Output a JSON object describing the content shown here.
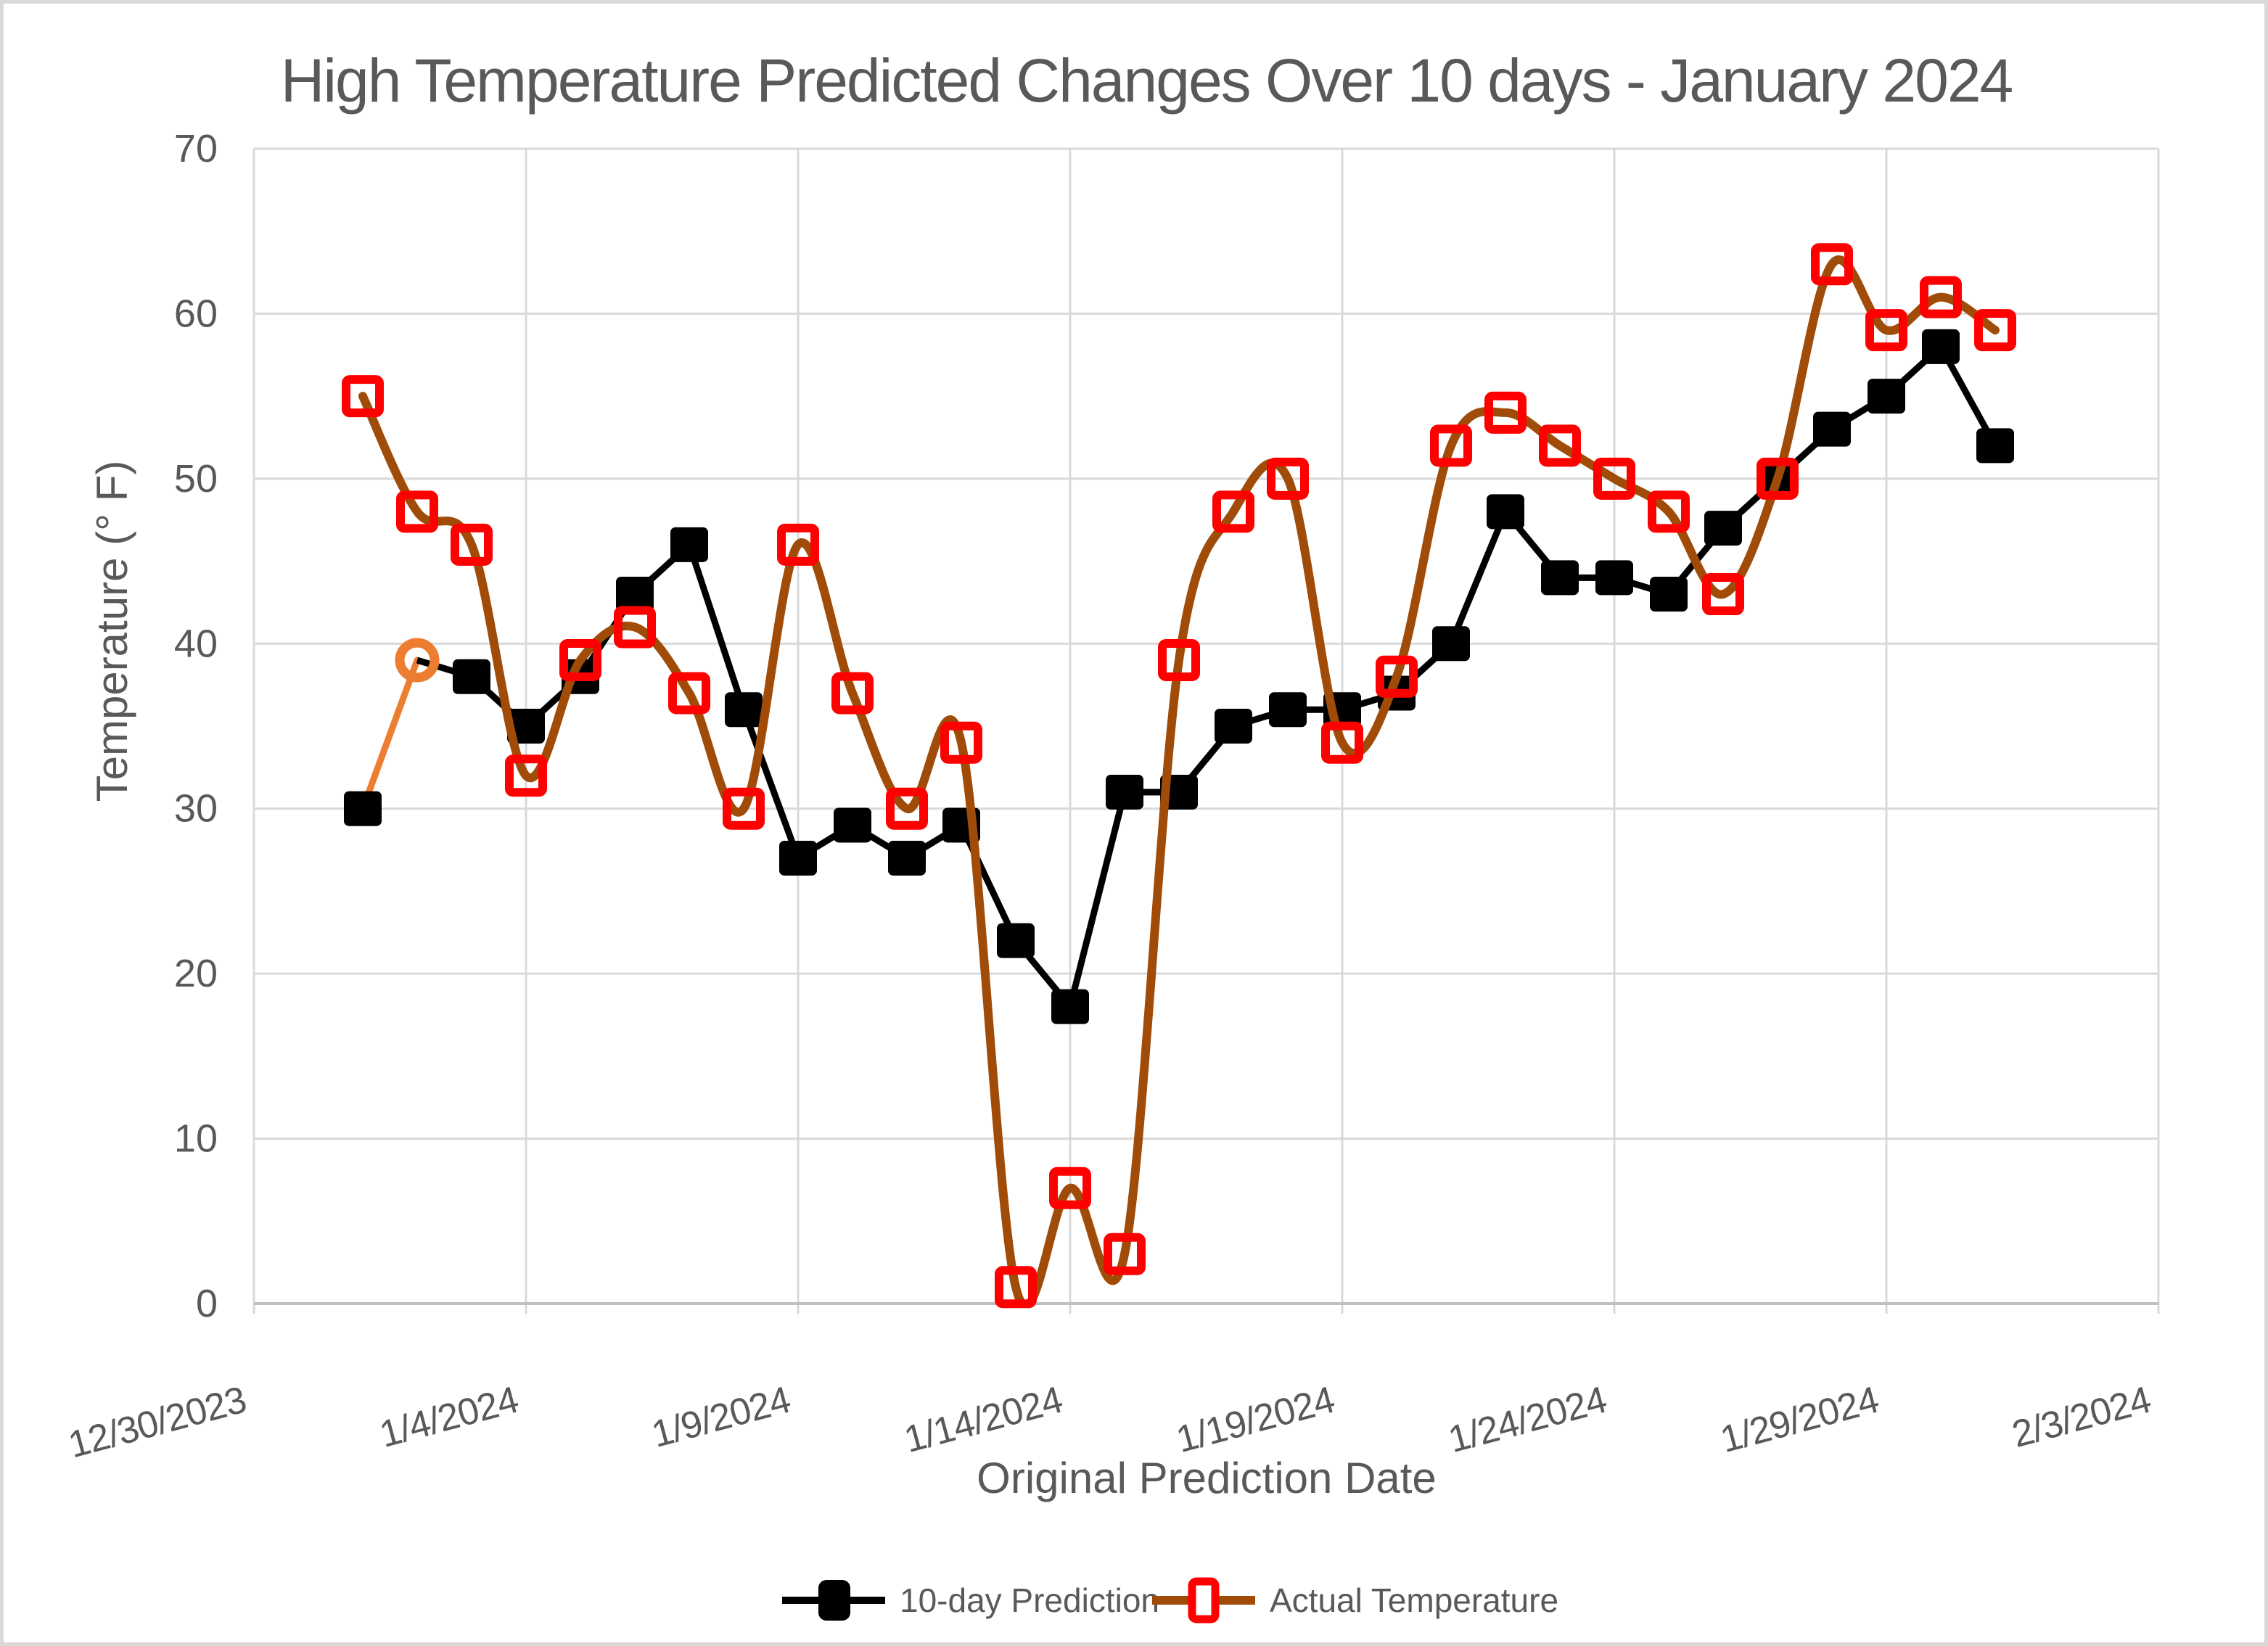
{
  "window": {
    "background": "#FFFFFF",
    "frame_border_color": "#D9D9D9"
  },
  "chart_data": {
    "type": "line",
    "title": "High Temperature Predicted Changes Over 10 days - January 2024",
    "xlabel": "Original Prediction Date",
    "ylabel": "Temperature (° F)",
    "x_tick_labels": [
      "12/30/2023",
      "1/4/2024",
      "1/9/2024",
      "1/14/2024",
      "1/19/2024",
      "1/24/2024",
      "1/29/2024",
      "2/3/2024"
    ],
    "x_tick_rotation_deg": -15,
    "y_ticks": [
      0,
      10,
      20,
      30,
      40,
      50,
      60,
      70
    ],
    "ylim": [
      0,
      70
    ],
    "x_range": [
      "12/30/2023",
      "2/3/2024"
    ],
    "grid": "both",
    "gridline_color": "#D9D9D9",
    "axis_line_color": "#BFBFBF",
    "text_color": "#595959",
    "legend_position": "bottom",
    "dates": [
      "1/1/2024",
      "1/2/2024",
      "1/3/2024",
      "1/4/2024",
      "1/5/2024",
      "1/6/2024",
      "1/7/2024",
      "1/8/2024",
      "1/9/2024",
      "1/10/2024",
      "1/11/2024",
      "1/12/2024",
      "1/13/2024",
      "1/14/2024",
      "1/15/2024",
      "1/16/2024",
      "1/17/2024",
      "1/18/2024",
      "1/19/2024",
      "1/20/2024",
      "1/21/2024",
      "1/22/2024",
      "1/23/2024",
      "1/24/2024",
      "1/25/2024",
      "1/26/2024",
      "1/27/2024",
      "1/28/2024",
      "1/29/2024",
      "1/30/2024",
      "1/31/2024"
    ],
    "series": [
      {
        "name": "10-day Prediction",
        "line_color": "#000000",
        "marker": "filled-square",
        "marker_color": "#000000",
        "smooth": false,
        "values": [
          30,
          39,
          38,
          35,
          38,
          43,
          46,
          36,
          27,
          29,
          27,
          29,
          22,
          18,
          31,
          31,
          35,
          36,
          36,
          37,
          40,
          48,
          44,
          44,
          43,
          47,
          50,
          53,
          55,
          58,
          52
        ],
        "highlight_point": {
          "date": "1/2/2024",
          "value": 39,
          "marker": "open-circle",
          "color": "#ED7D31",
          "note": "segment from 1/1 to 1/2 drawn in orange with an open orange circle marker"
        }
      },
      {
        "name": "Actual Temperature",
        "line_color": "#A04B08",
        "marker": "open-square",
        "marker_color": "#FF0000",
        "smooth": true,
        "values": [
          55,
          48,
          46,
          32,
          39,
          41,
          37,
          30,
          46,
          37,
          30,
          34,
          1,
          7,
          3,
          39,
          48,
          50,
          34,
          38,
          52,
          54,
          52,
          50,
          48,
          43,
          50,
          63,
          59,
          61,
          59
        ]
      }
    ]
  }
}
